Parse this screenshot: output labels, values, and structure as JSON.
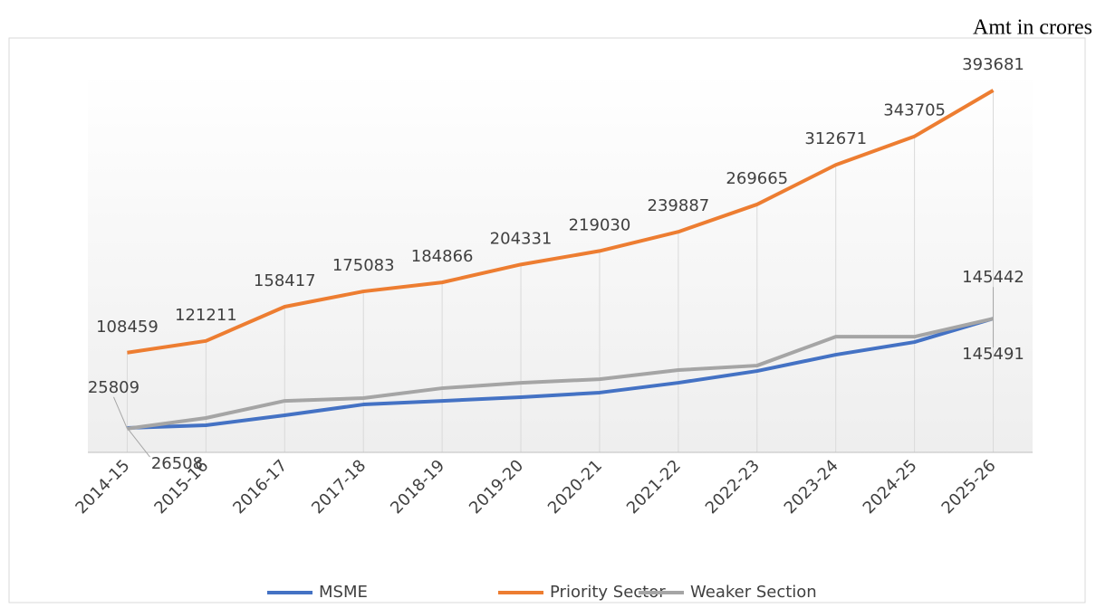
{
  "chart_data": {
    "type": "line",
    "note_label": "Amt in crores",
    "categories": [
      "2014-15",
      "2015-16",
      "2016-17",
      "2017-18",
      "2018-19",
      "2019-20",
      "2020-21",
      "2021-22",
      "2022-23",
      "2023-24",
      "2024-25",
      "2025-26"
    ],
    "series": [
      {
        "name": "MSME",
        "color": "#4472c4",
        "values": [
          26508,
          29500,
          40300,
          52100,
          56000,
          60000,
          65000,
          75700,
          88500,
          106200,
          120000,
          145491
        ],
        "value_labels": [
          "26508",
          null,
          null,
          null,
          null,
          null,
          null,
          null,
          null,
          null,
          null,
          "145491"
        ]
      },
      {
        "name": "Priority Sector",
        "color": "#ed7d31",
        "values": [
          108459,
          121211,
          158417,
          175083,
          184866,
          204331,
          219030,
          239887,
          269665,
          312671,
          343705,
          393681
        ]
      },
      {
        "name": "Weaker Section",
        "color": "#a5a5a5",
        "values": [
          25809,
          37400,
          56000,
          59000,
          69800,
          75700,
          79600,
          89500,
          94400,
          125800,
          125800,
          145442
        ],
        "value_labels": [
          "25809",
          null,
          null,
          null,
          null,
          null,
          null,
          null,
          null,
          null,
          null,
          "145442"
        ]
      }
    ],
    "ylim": [
      0,
      430000
    ],
    "legend": "bottom"
  }
}
